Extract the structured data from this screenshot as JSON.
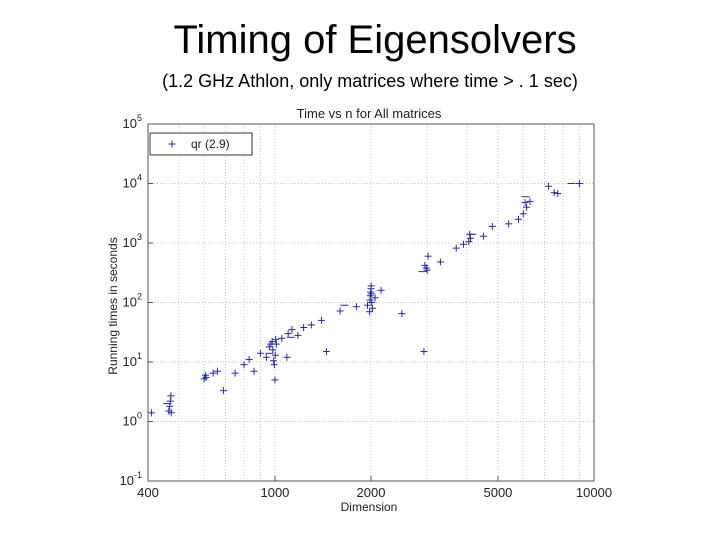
{
  "slide": {
    "title": "Timing of Eigensolvers",
    "subtitle": "(1.2 GHz Athlon, only matrices where time > . 1 sec)"
  },
  "colors": {
    "marker": "#2b2b9a",
    "grid": "#c4c4c4",
    "frame": "#555555"
  },
  "chart_data": {
    "type": "scatter",
    "title": "Time vs n for All matrices",
    "xlabel": "Dimension",
    "ylabel": "Running times in seconds",
    "xscale": "log",
    "yscale": "log",
    "xlim": [
      400,
      10000
    ],
    "ylim": [
      0.1,
      100000
    ],
    "grid": true,
    "legend_position": "top-left",
    "xticks": [
      {
        "value": 400,
        "label": "400"
      },
      {
        "value": 1000,
        "label": "1000"
      },
      {
        "value": 2000,
        "label": "2000"
      },
      {
        "value": 5000,
        "label": "5000"
      },
      {
        "value": 10000,
        "label": "10000"
      }
    ],
    "yticks": [
      {
        "value": 0.1,
        "base": "10",
        "exp": "-1"
      },
      {
        "value": 1,
        "base": "10",
        "exp": "0"
      },
      {
        "value": 10,
        "base": "10",
        "exp": "1"
      },
      {
        "value": 100,
        "base": "10",
        "exp": "2"
      },
      {
        "value": 1000,
        "base": "10",
        "exp": "3"
      },
      {
        "value": 10000,
        "base": "10",
        "exp": "4"
      },
      {
        "value": 100000,
        "base": "10",
        "exp": "5"
      }
    ],
    "series": [
      {
        "name": "qr (2.9)",
        "marker": "+",
        "points": [
          [
            410,
            1.4
          ],
          [
            465,
            1.5
          ],
          [
            468,
            1.8
          ],
          [
            470,
            2.2
          ],
          [
            472,
            2.7
          ],
          [
            473,
            1.4
          ],
          [
            600,
            5.2
          ],
          [
            605,
            6.0
          ],
          [
            608,
            5.5
          ],
          [
            640,
            6.5
          ],
          [
            660,
            7.0
          ],
          [
            690,
            3.3
          ],
          [
            750,
            6.5
          ],
          [
            800,
            9.0
          ],
          [
            830,
            11.0
          ],
          [
            860,
            7.0
          ],
          [
            900,
            14.0
          ],
          [
            940,
            12.0
          ],
          [
            960,
            18.0
          ],
          [
            970,
            20.0
          ],
          [
            980,
            22.0
          ],
          [
            985,
            16.0
          ],
          [
            990,
            10.5
          ],
          [
            995,
            9.0
          ],
          [
            1000,
            5.0
          ],
          [
            1002,
            13.0
          ],
          [
            1005,
            24.0
          ],
          [
            1010,
            20.0
          ],
          [
            1050,
            25.0
          ],
          [
            1090,
            12.0
          ],
          [
            1100,
            30.0
          ],
          [
            1130,
            35.0
          ],
          [
            1180,
            28.0
          ],
          [
            1230,
            38.0
          ],
          [
            1300,
            42.0
          ],
          [
            1400,
            50.0
          ],
          [
            1450,
            15.0
          ],
          [
            1600,
            72.0
          ],
          [
            1800,
            85.0
          ],
          [
            1950,
            90.0
          ],
          [
            1980,
            70.0
          ],
          [
            1985,
            110.0
          ],
          [
            1990,
            130.0
          ],
          [
            1995,
            150.0
          ],
          [
            2000,
            170.0
          ],
          [
            2002,
            190.0
          ],
          [
            2005,
            140.0
          ],
          [
            2010,
            100.0
          ],
          [
            2020,
            80.0
          ],
          [
            2060,
            120.0
          ],
          [
            2150,
            160.0
          ],
          [
            2500,
            65.0
          ],
          [
            2930,
            15.0
          ],
          [
            2950,
            420.0
          ],
          [
            2980,
            380.0
          ],
          [
            3000,
            350.0
          ],
          [
            3020,
            600.0
          ],
          [
            3300,
            480.0
          ],
          [
            3700,
            820.0
          ],
          [
            3900,
            950.0
          ],
          [
            4050,
            1050.0
          ],
          [
            4080,
            1400.0
          ],
          [
            4100,
            1200.0
          ],
          [
            4500,
            1300.0
          ],
          [
            4800,
            1900.0
          ],
          [
            5400,
            2100.0
          ],
          [
            5800,
            2500.0
          ],
          [
            6000,
            3100.0
          ],
          [
            6080,
            4800.0
          ],
          [
            6150,
            4000.0
          ],
          [
            6300,
            5000.0
          ],
          [
            7200,
            9000.0
          ],
          [
            7500,
            7000.0
          ],
          [
            7700,
            6800.0
          ],
          [
            9000,
            10000.0
          ]
        ]
      }
    ],
    "dash_markers": [
      [
        460,
        2.0
      ],
      [
        960,
        14.0
      ],
      [
        1120,
        26.0
      ],
      [
        1650,
        90.0
      ],
      [
        2900,
        330.0
      ],
      [
        4150,
        1400.0
      ],
      [
        6100,
        6000.0
      ],
      [
        8500,
        10000.0
      ]
    ]
  }
}
